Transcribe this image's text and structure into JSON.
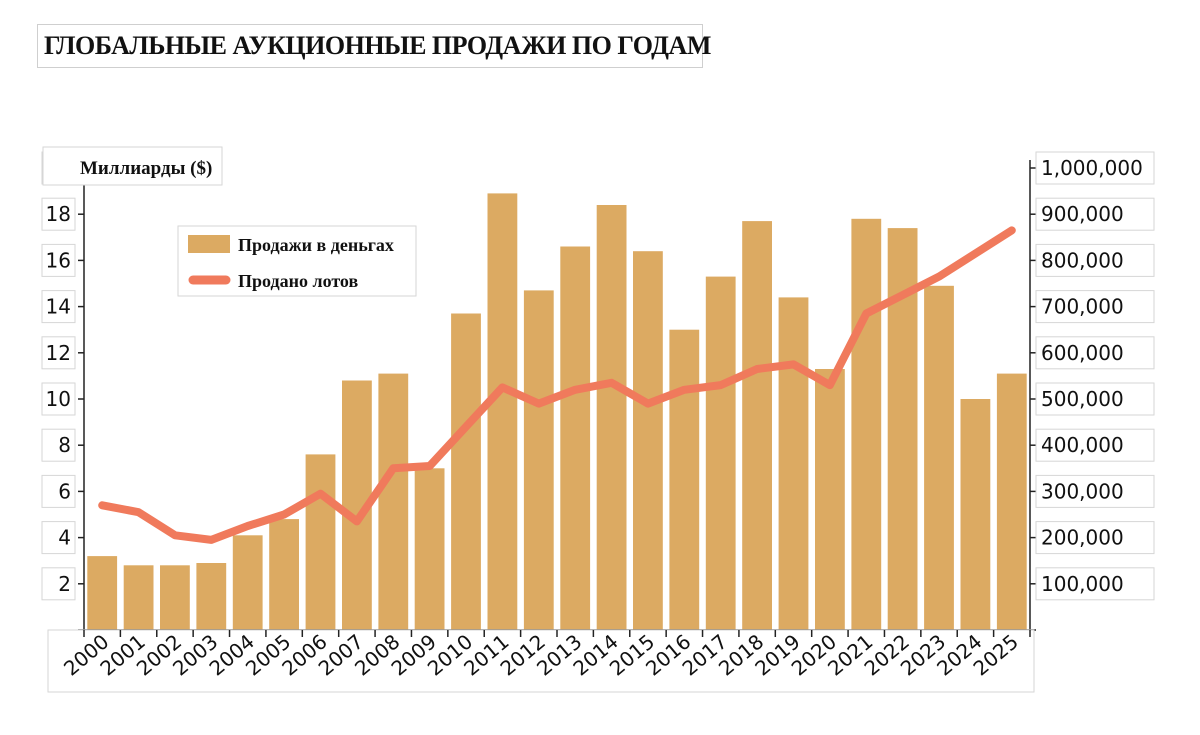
{
  "title": "ГЛОБАЛЬНЫЕ АУКЦИОННЫЕ ПРОДАЖИ ПО ГОДАМ",
  "colors": {
    "bars": "#dcaa62",
    "line": "#f07a5c",
    "axis": "#222222"
  },
  "chart_data": {
    "type": "bar",
    "title": "ГЛОБАЛЬНЫЕ АУКЦИОННЫЕ ПРОДАЖИ ПО ГОДАМ",
    "xlabel": "",
    "ylabel": "Миллиарды ($)",
    "y2label": "",
    "categories": [
      "2000",
      "2001",
      "2002",
      "2003",
      "2004",
      "2005",
      "2006",
      "2007",
      "2008",
      "2009",
      "2010",
      "2011",
      "2012",
      "2013",
      "2014",
      "2015",
      "2016",
      "2017",
      "2018",
      "2019",
      "2020",
      "2021",
      "2022",
      "2023",
      "2024",
      "2025"
    ],
    "series": [
      {
        "name": "Продажи в деньгах",
        "type": "bar",
        "axis": "left",
        "values": [
          3.2,
          2.8,
          2.8,
          2.9,
          4.1,
          4.8,
          7.6,
          10.8,
          11.1,
          7.0,
          13.7,
          18.9,
          14.7,
          16.6,
          18.4,
          16.4,
          13.0,
          15.3,
          17.7,
          14.4,
          11.3,
          17.8,
          17.4,
          14.9,
          10.0,
          11.1
        ]
      },
      {
        "name": "Продано лотов",
        "type": "line",
        "axis": "right",
        "values": [
          270000,
          255000,
          205000,
          195000,
          225000,
          250000,
          295000,
          235000,
          350000,
          355000,
          440000,
          525000,
          490000,
          520000,
          535000,
          490000,
          520000,
          530000,
          565000,
          575000,
          530000,
          685000,
          725000,
          765000,
          815000,
          865000
        ]
      }
    ],
    "ylim": [
      0,
      20
    ],
    "yticks": [
      "2",
      "4",
      "6",
      "8",
      "10",
      "12",
      "14",
      "16",
      "18",
      "20"
    ],
    "y2lim": [
      0,
      1000000
    ],
    "y2ticks": [
      "100,000",
      "200,000",
      "300,000",
      "400,000",
      "500,000",
      "600,000",
      "700,000",
      "800,000",
      "900,000",
      "1,000,000"
    ],
    "grid": false,
    "legend": "top-left"
  }
}
